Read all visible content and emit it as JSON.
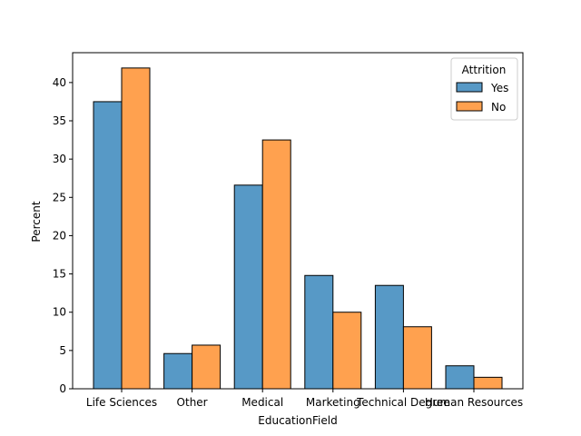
{
  "chart_data": {
    "type": "bar",
    "title": "",
    "xlabel": "EducationField",
    "ylabel": "Percent",
    "categories": [
      "Life Sciences",
      "Other",
      "Medical",
      "Marketing",
      "Technical Degree",
      "Human Resources"
    ],
    "ylim": [
      0,
      43.9
    ],
    "yticks": [
      0,
      5,
      10,
      15,
      20,
      25,
      30,
      35,
      40
    ],
    "grid": false,
    "legend": {
      "title": "Attrition",
      "position": "top-right"
    },
    "series": [
      {
        "name": "Yes",
        "color": "#5799c6",
        "values": [
          37.5,
          4.6,
          26.6,
          14.8,
          13.5,
          3.0
        ]
      },
      {
        "name": "No",
        "color": "#ffa14f",
        "values": [
          41.9,
          5.7,
          32.5,
          10.0,
          8.1,
          1.5
        ]
      }
    ]
  }
}
